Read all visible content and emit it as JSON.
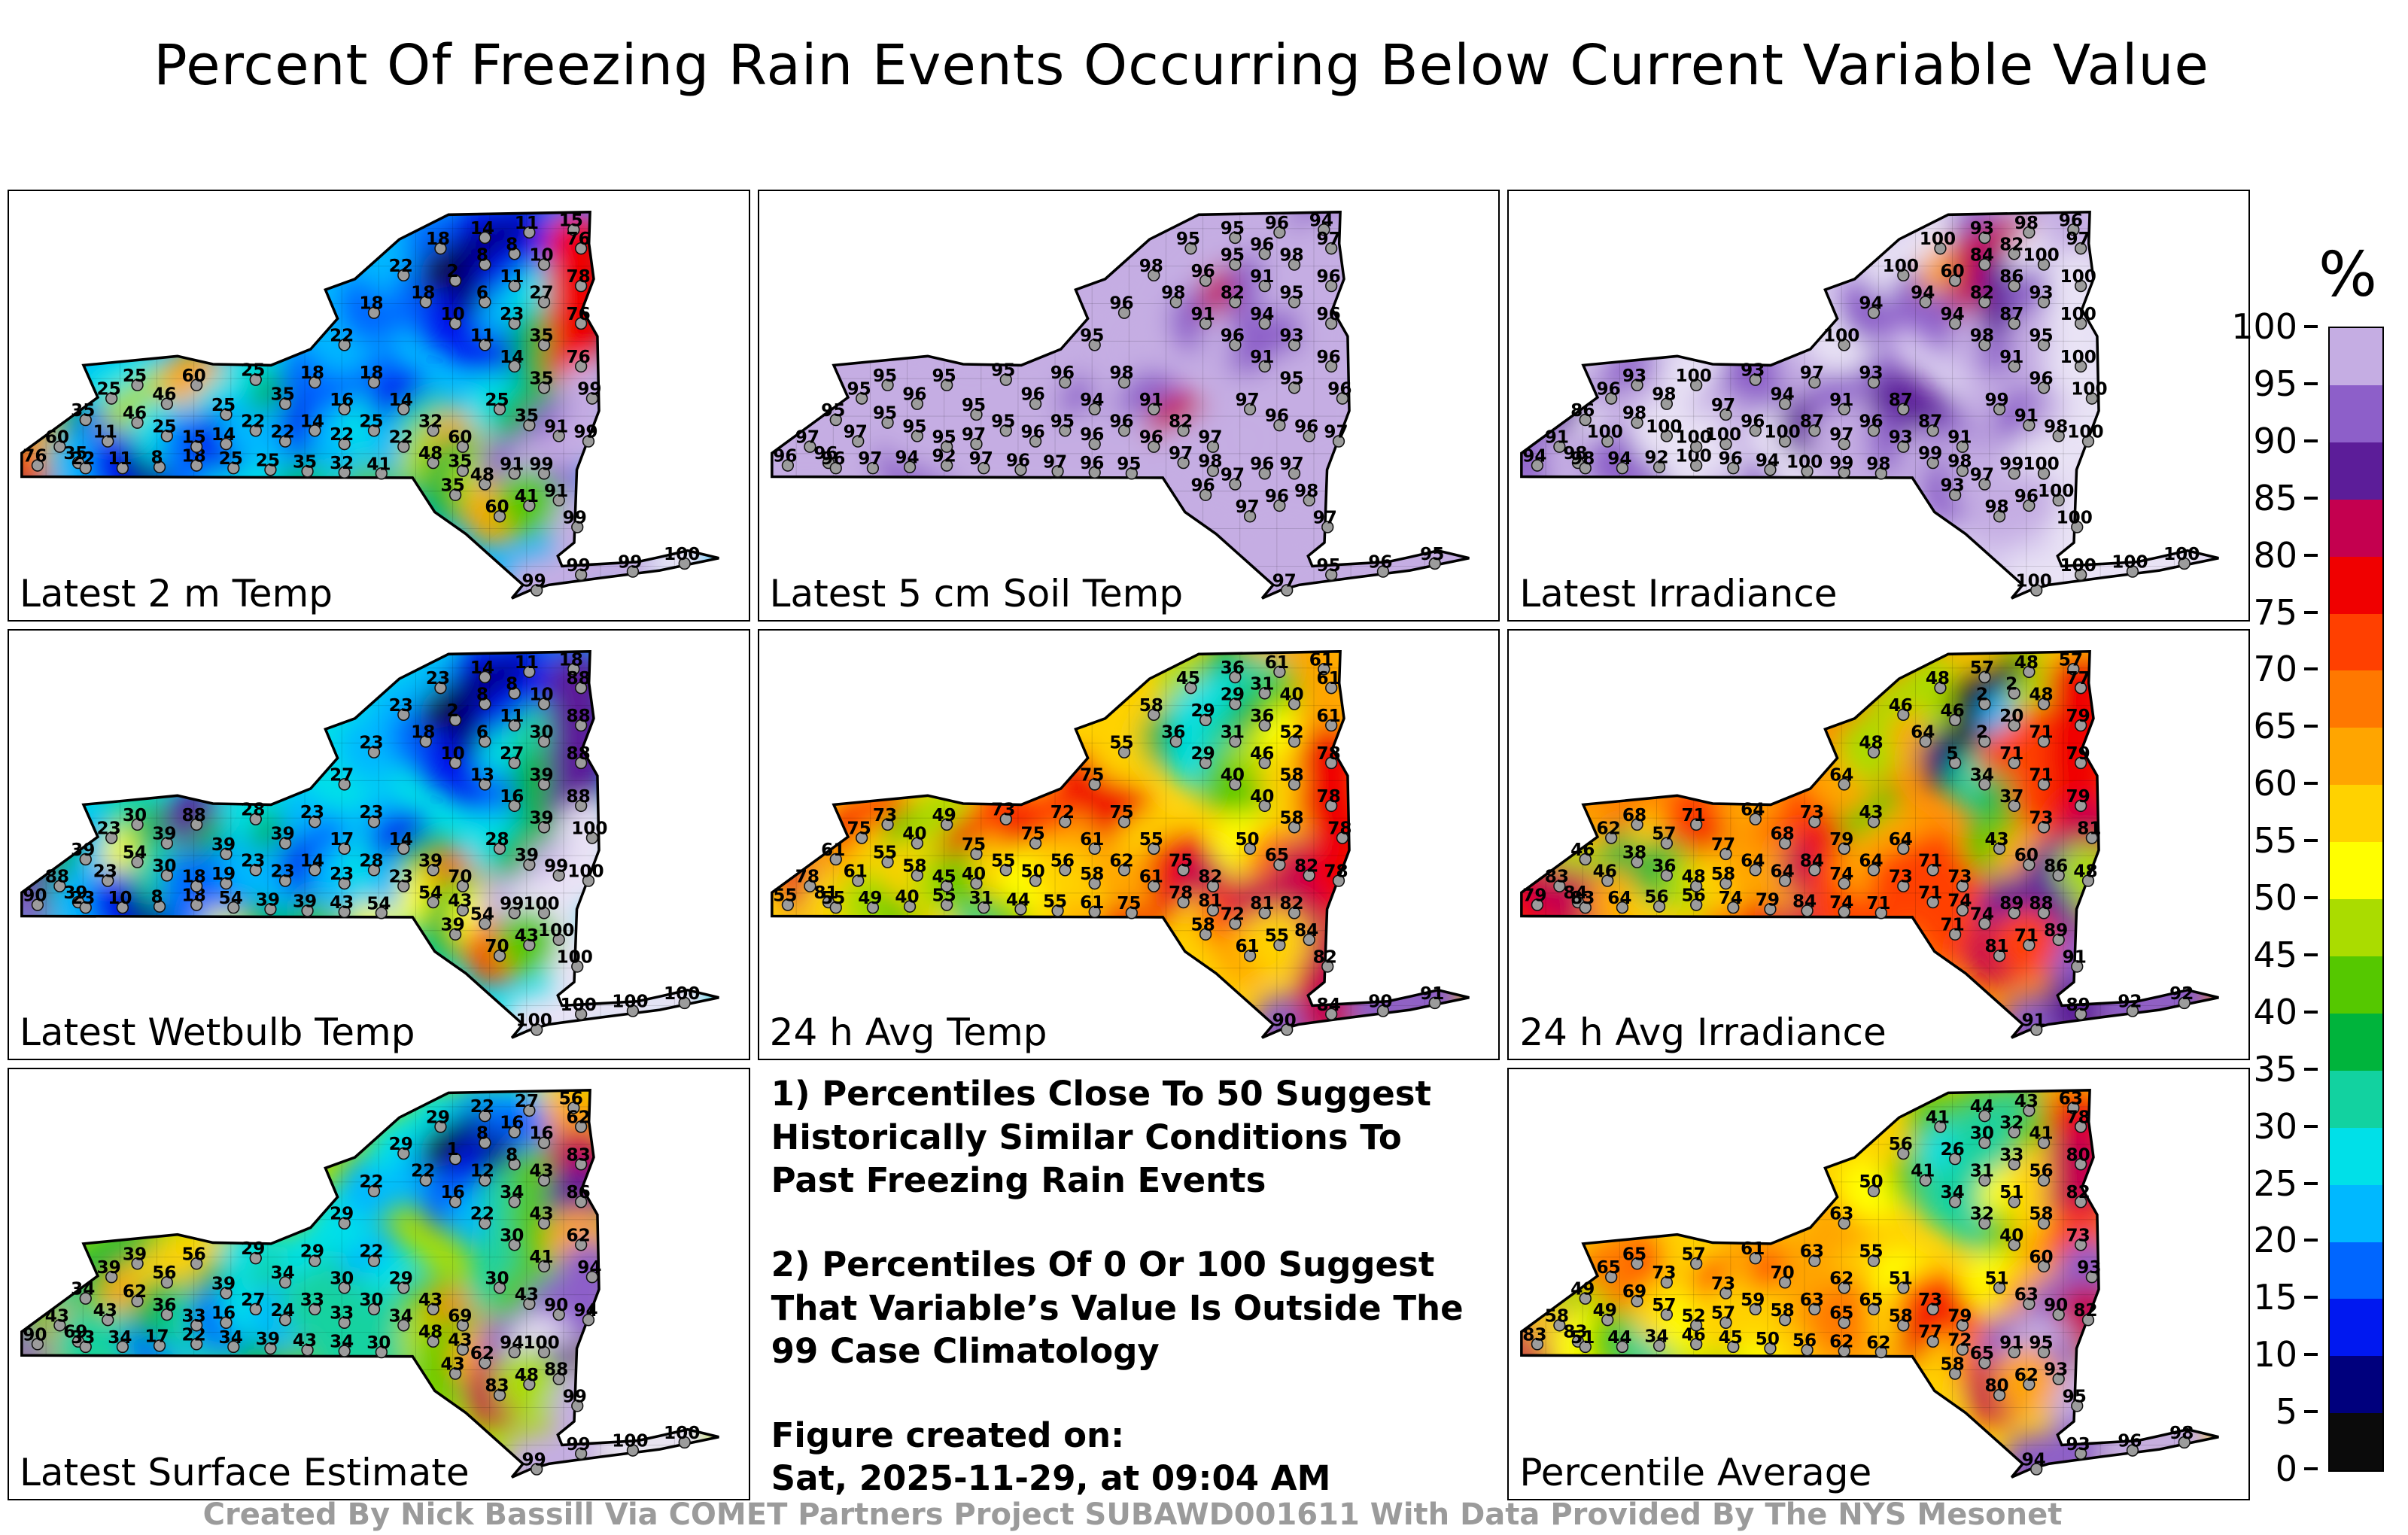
{
  "title": "Percent Of Freezing Rain Events Occurring Below Current Variable Value",
  "footer": "Created By Nick Bassill Via COMET Partners Project SUBAWD001611 With Data Provided By The NYS Mesonet",
  "notes": {
    "note1": "1) Percentiles Close To 50 Suggest Historically Similar Conditions To Past Freezing Rain Events",
    "note2": "2) Percentiles Of 0 Or 100 Suggest That Variable’s Value Is Outside The 99 Case Climatology",
    "created_label": "Figure created on:",
    "created_value": "Sat, 2025-11-29, at 09:04 AM"
  },
  "chart_data": {
    "type": "heatmap",
    "subtype": "station-percentile-contour-maps",
    "region": "New York State (NYS Mesonet stations)",
    "units": "%",
    "colorbar": {
      "label": "%",
      "ticks": [
        100,
        95,
        90,
        85,
        80,
        75,
        70,
        65,
        60,
        55,
        50,
        45,
        40,
        35,
        30,
        25,
        20,
        15,
        10,
        5,
        0
      ],
      "top_color": "#e9e3f5",
      "palette": [
        {
          "t": 5,
          "c": "#0b0b0b"
        },
        {
          "t": 10,
          "c": "#00007d"
        },
        {
          "t": 15,
          "c": "#0018f0"
        },
        {
          "t": 20,
          "c": "#0066ff"
        },
        {
          "t": 25,
          "c": "#00b8ff"
        },
        {
          "t": 30,
          "c": "#00e0e8"
        },
        {
          "t": 35,
          "c": "#12d2a0"
        },
        {
          "t": 40,
          "c": "#00b43c"
        },
        {
          "t": 45,
          "c": "#55c800"
        },
        {
          "t": 50,
          "c": "#aadc00"
        },
        {
          "t": 55,
          "c": "#ffff00"
        },
        {
          "t": 60,
          "c": "#ffd200"
        },
        {
          "t": 65,
          "c": "#ffa500"
        },
        {
          "t": 70,
          "c": "#ff7800"
        },
        {
          "t": 75,
          "c": "#ff4000"
        },
        {
          "t": 80,
          "c": "#f00000"
        },
        {
          "t": 85,
          "c": "#c4004f"
        },
        {
          "t": 90,
          "c": "#5c1d99"
        },
        {
          "t": 95,
          "c": "#8d5fc9"
        },
        {
          "t": 100,
          "c": "#c5ade3"
        }
      ]
    },
    "stations_xy": [
      [
        3.5,
        50.5
      ],
      [
        6.5,
        47
      ],
      [
        10,
        42
      ],
      [
        13.5,
        38
      ],
      [
        17,
        35.5
      ],
      [
        9,
        50
      ],
      [
        13,
        46
      ],
      [
        17,
        42.5
      ],
      [
        21,
        39
      ],
      [
        25,
        35.5
      ],
      [
        10,
        51
      ],
      [
        15,
        51
      ],
      [
        20,
        50.8
      ],
      [
        25,
        50.5
      ],
      [
        30,
        51
      ],
      [
        35,
        51.3
      ],
      [
        40,
        51.6
      ],
      [
        45,
        51.8
      ],
      [
        50,
        52
      ],
      [
        21,
        45
      ],
      [
        25,
        47
      ],
      [
        29,
        41
      ],
      [
        29,
        46.5
      ],
      [
        33,
        34.5
      ],
      [
        33,
        44
      ],
      [
        37,
        39
      ],
      [
        37,
        46
      ],
      [
        41,
        35
      ],
      [
        41,
        44
      ],
      [
        45,
        40
      ],
      [
        45,
        46.5
      ],
      [
        49,
        35
      ],
      [
        49,
        44
      ],
      [
        53,
        40
      ],
      [
        53,
        47
      ],
      [
        57,
        44
      ],
      [
        57,
        50
      ],
      [
        61,
        47
      ],
      [
        61,
        51.5
      ],
      [
        45,
        28
      ],
      [
        49,
        22
      ],
      [
        53,
        15
      ],
      [
        58,
        10
      ],
      [
        64,
        8
      ],
      [
        70,
        7
      ],
      [
        76,
        6.5
      ],
      [
        56,
        20
      ],
      [
        60,
        16
      ],
      [
        64,
        13
      ],
      [
        68,
        11
      ],
      [
        60,
        24
      ],
      [
        64,
        20
      ],
      [
        68,
        17
      ],
      [
        72,
        13
      ],
      [
        77,
        10
      ],
      [
        64,
        28
      ],
      [
        68,
        24
      ],
      [
        72,
        20
      ],
      [
        77,
        17
      ],
      [
        68,
        32
      ],
      [
        72,
        28
      ],
      [
        77,
        24
      ],
      [
        72,
        36
      ],
      [
        77,
        32
      ],
      [
        78.5,
        38
      ],
      [
        66,
        40
      ],
      [
        70,
        43
      ],
      [
        74,
        45
      ],
      [
        78,
        46
      ],
      [
        60,
        56
      ],
      [
        64,
        54
      ],
      [
        68,
        52
      ],
      [
        72,
        52
      ],
      [
        74,
        57
      ],
      [
        76.5,
        62
      ],
      [
        66,
        60
      ],
      [
        70,
        58
      ],
      [
        71,
        73.8
      ],
      [
        77,
        70.9
      ],
      [
        84,
        70.3
      ],
      [
        91,
        68.8
      ]
    ],
    "panels": [
      {
        "label": "Latest 2 m Temp",
        "base_color": "#00b8ff",
        "values": [
          76,
          60,
          35,
          25,
          25,
          35,
          11,
          46,
          46,
          60,
          22,
          11,
          8,
          18,
          25,
          25,
          35,
          32,
          41,
          25,
          15,
          25,
          14,
          25,
          22,
          35,
          22,
          18,
          14,
          16,
          22,
          18,
          25,
          14,
          22,
          32,
          48,
          60,
          35,
          22,
          18,
          22,
          18,
          14,
          11,
          15,
          18,
          2,
          8,
          8,
          10,
          6,
          11,
          10,
          76,
          11,
          23,
          27,
          78,
          14,
          35,
          76,
          35,
          76,
          99,
          25,
          35,
          91,
          99,
          35,
          48,
          91,
          99,
          91,
          99,
          60,
          41,
          99,
          99,
          99,
          100
        ]
      },
      {
        "label": "Latest 5 cm Soil Temp",
        "base_color": "#c5ade3",
        "values": [
          96,
          97,
          95,
          95,
          95,
          96,
          97,
          95,
          96,
          95,
          96,
          97,
          94,
          92,
          97,
          96,
          97,
          96,
          95,
          95,
          95,
          95,
          97,
          95,
          95,
          96,
          96,
          96,
          95,
          94,
          96,
          98,
          96,
          91,
          96,
          82,
          97,
          97,
          98,
          95,
          96,
          98,
          95,
          95,
          96,
          94,
          98,
          96,
          95,
          96,
          91,
          82,
          91,
          98,
          97,
          96,
          94,
          95,
          96,
          91,
          93,
          96,
          95,
          96,
          96,
          97,
          96,
          96,
          97,
          96,
          97,
          96,
          97,
          98,
          97,
          97,
          96,
          97,
          95,
          96,
          95
        ]
      },
      {
        "label": "Latest Irradiance",
        "base_color": "#d7c9ee",
        "values": [
          94,
          91,
          86,
          96,
          93,
          98,
          100,
          98,
          98,
          100,
          98,
          94,
          92,
          100,
          96,
          94,
          100,
          99,
          98,
          100,
          100,
          97,
          100,
          93,
          96,
          94,
          100,
          97,
          87,
          91,
          97,
          93,
          96,
          87,
          93,
          87,
          99,
          91,
          98,
          100,
          94,
          100,
          100,
          93,
          98,
          96,
          94,
          60,
          84,
          82,
          94,
          82,
          86,
          100,
          97,
          98,
          87,
          93,
          100,
          91,
          95,
          100,
          96,
          100,
          100,
          99,
          91,
          98,
          100,
          93,
          97,
          99,
          100,
          100,
          100,
          98,
          96,
          100,
          100,
          100,
          100
        ]
      },
      {
        "label": "Latest Wetbulb Temp",
        "base_color": "#00e0e8",
        "values": [
          90,
          88,
          39,
          23,
          30,
          39,
          23,
          54,
          39,
          88,
          23,
          10,
          8,
          18,
          54,
          39,
          39,
          43,
          54,
          30,
          18,
          39,
          19,
          28,
          23,
          39,
          23,
          23,
          14,
          17,
          23,
          23,
          28,
          14,
          23,
          39,
          54,
          70,
          43,
          27,
          23,
          23,
          23,
          14,
          11,
          18,
          18,
          2,
          8,
          8,
          10,
          6,
          11,
          10,
          88,
          13,
          27,
          30,
          88,
          16,
          39,
          88,
          39,
          88,
          100,
          28,
          39,
          99,
          100,
          39,
          54,
          99,
          100,
          100,
          100,
          70,
          43,
          100,
          100,
          100,
          100
        ]
      },
      {
        "label": "24 h Avg Temp",
        "base_color": "#ffd200",
        "values": [
          55,
          78,
          61,
          75,
          73,
          81,
          61,
          55,
          40,
          49,
          55,
          49,
          40,
          55,
          31,
          44,
          55,
          61,
          75,
          58,
          45,
          75,
          40,
          73,
          55,
          75,
          50,
          72,
          56,
          61,
          58,
          75,
          62,
          55,
          61,
          75,
          78,
          82,
          81,
          75,
          55,
          58,
          45,
          36,
          61,
          61,
          36,
          29,
          29,
          31,
          29,
          31,
          36,
          40,
          61,
          40,
          46,
          52,
          61,
          40,
          58,
          78,
          58,
          78,
          78,
          50,
          65,
          82,
          78,
          58,
          72,
          81,
          82,
          84,
          82,
          61,
          55,
          90,
          84,
          90,
          91
        ]
      },
      {
        "label": "24 h Avg Irradiance",
        "base_color": "#ff9000",
        "values": [
          79,
          83,
          46,
          62,
          68,
          84,
          46,
          38,
          57,
          71,
          83,
          64,
          56,
          56,
          74,
          79,
          84,
          74,
          71,
          36,
          48,
          77,
          58,
          64,
          64,
          68,
          64,
          73,
          84,
          79,
          74,
          43,
          64,
          64,
          73,
          71,
          71,
          73,
          74,
          64,
          48,
          46,
          48,
          57,
          48,
          57,
          64,
          46,
          2,
          2,
          5,
          2,
          20,
          48,
          77,
          34,
          71,
          71,
          79,
          37,
          71,
          79,
          73,
          79,
          81,
          43,
          60,
          86,
          48,
          71,
          74,
          89,
          88,
          89,
          91,
          81,
          71,
          91,
          89,
          92,
          92
        ]
      },
      {
        "label": "Latest Surface Estimate",
        "base_color": "#aadc00",
        "values": [
          90,
          43,
          34,
          39,
          39,
          69,
          43,
          62,
          56,
          56,
          33,
          34,
          17,
          22,
          34,
          39,
          43,
          34,
          30,
          36,
          33,
          39,
          16,
          29,
          27,
          34,
          24,
          29,
          33,
          30,
          33,
          22,
          30,
          29,
          34,
          43,
          48,
          69,
          43,
          29,
          22,
          29,
          29,
          22,
          27,
          56,
          22,
          1,
          8,
          16,
          16,
          12,
          8,
          16,
          62,
          22,
          34,
          43,
          83,
          30,
          43,
          86,
          41,
          62,
          94,
          30,
          43,
          90,
          94,
          43,
          62,
          94,
          100,
          88,
          99,
          83,
          48,
          99,
          99,
          100,
          100
        ]
      },
      {
        "label": "Percentile Average",
        "base_color": "#ffd200",
        "values": [
          83,
          58,
          49,
          65,
          65,
          83,
          49,
          69,
          73,
          57,
          51,
          44,
          34,
          46,
          45,
          50,
          56,
          62,
          62,
          57,
          52,
          73,
          57,
          61,
          59,
          70,
          58,
          63,
          63,
          62,
          65,
          55,
          65,
          51,
          58,
          73,
          77,
          79,
          72,
          63,
          50,
          56,
          41,
          44,
          43,
          63,
          41,
          26,
          30,
          32,
          34,
          31,
          33,
          41,
          78,
          32,
          51,
          56,
          80,
          40,
          58,
          82,
          60,
          73,
          93,
          51,
          63,
          90,
          82,
          58,
          65,
          91,
          95,
          93,
          95,
          80,
          62,
          94,
          93,
          96,
          98
        ]
      }
    ]
  }
}
